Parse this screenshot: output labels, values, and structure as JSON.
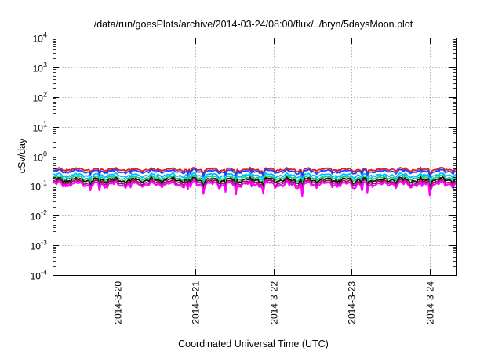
{
  "chart_data": {
    "type": "line",
    "title": "/data/run/goesPlots/archive/2014-03-24/08:00/flux/../bryn/5daysMoon.plot",
    "xlabel": "Coordinated Universal Time (UTC)",
    "ylabel": "cSv/day",
    "yscale": "log",
    "ylim": [
      0.0001,
      10000
    ],
    "xlim": [
      "2014-03-19 04:00",
      "2014-03-24 08:00"
    ],
    "grid": true,
    "y_ticks": [
      {
        "value": 0.0001,
        "base": "10",
        "exp": "-4"
      },
      {
        "value": 0.001,
        "base": "10",
        "exp": "-3"
      },
      {
        "value": 0.01,
        "base": "10",
        "exp": "-2"
      },
      {
        "value": 0.1,
        "base": "10",
        "exp": "-1"
      },
      {
        "value": 1,
        "base": "10",
        "exp": "0"
      },
      {
        "value": 10,
        "base": "10",
        "exp": "1"
      },
      {
        "value": 100,
        "base": "10",
        "exp": "2"
      },
      {
        "value": 1000,
        "base": "10",
        "exp": "3"
      },
      {
        "value": 10000,
        "base": "10",
        "exp": "4"
      }
    ],
    "x_ticks": [
      {
        "value": "2014-03-20 00:00",
        "label": "2014-3-20"
      },
      {
        "value": "2014-03-21 00:00",
        "label": "2014-3-21"
      },
      {
        "value": "2014-03-22 00:00",
        "label": "2014-3-22"
      },
      {
        "value": "2014-03-23 00:00",
        "label": "2014-3-23"
      },
      {
        "value": "2014-03-24 00:00",
        "label": "2014-3-24"
      }
    ],
    "series": [
      {
        "color": "#e41a1c",
        "level": 0.36
      },
      {
        "color": "#1f3fff",
        "level": 0.31
      },
      {
        "color": "#00bfff",
        "level": 0.23
      },
      {
        "color": "#22cc77",
        "level": 0.19
      },
      {
        "color": "#111111",
        "level": 0.16
      },
      {
        "color": "#8b1a4a",
        "level": 0.135
      },
      {
        "color": "#ff00ff",
        "level": 0.115
      }
    ]
  }
}
